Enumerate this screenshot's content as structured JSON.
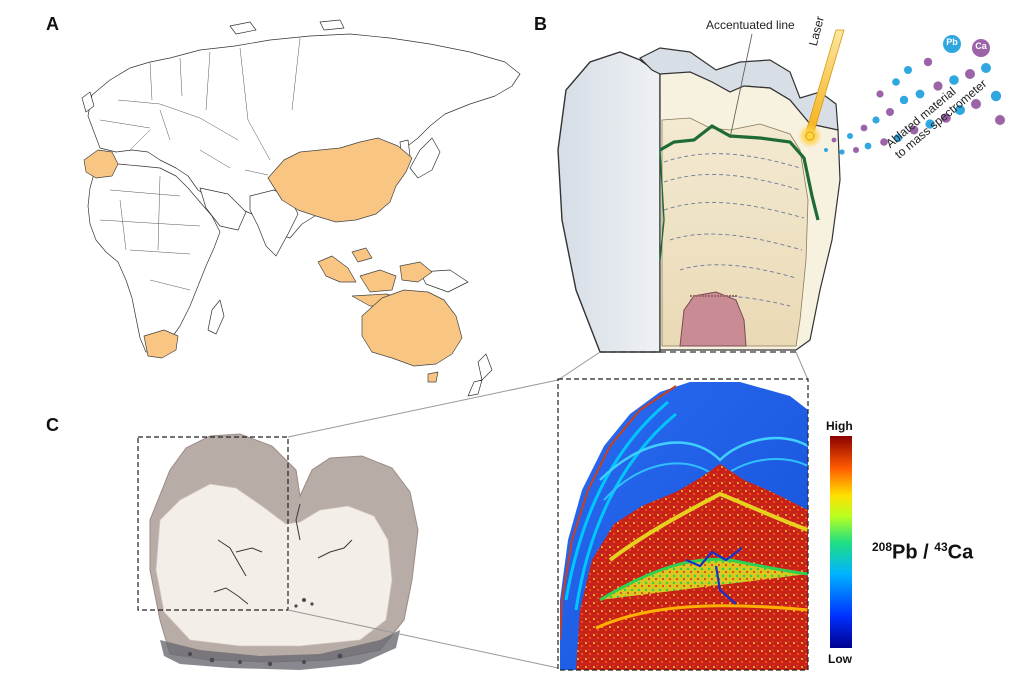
{
  "panels": {
    "a": {
      "label": "A",
      "highlighted_regions": [
        "France",
        "China",
        "Southeast Asia",
        "Australia",
        "South Africa"
      ],
      "highlight_color": "#F9C583"
    },
    "b": {
      "label": "B",
      "accentuated_line_label": "Accentuated line",
      "laser_label": "Laser",
      "ablated_label_line1": "Ablated material",
      "ablated_label_line2": "to mass spectrometer",
      "pb_badge": "Pb",
      "ca_badge": "Ca",
      "pb_color": "#2FA7DF",
      "ca_color": "#9B63A8",
      "accent_line_color": "#1E6B35"
    },
    "c": {
      "label": "C",
      "legend_high": "High",
      "legend_low": "Low",
      "ratio_num_mass": "208",
      "ratio_num_elem": "Pb",
      "ratio_sep": " / ",
      "ratio_den_mass": "43",
      "ratio_den_elem": "Ca"
    }
  }
}
